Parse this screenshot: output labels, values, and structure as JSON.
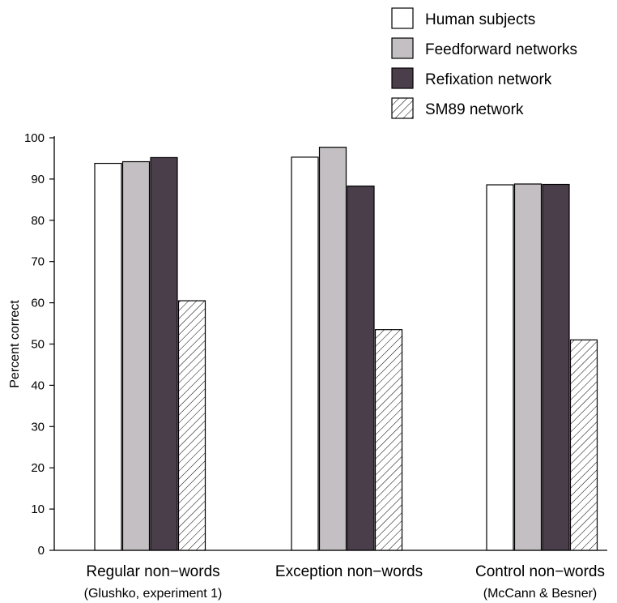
{
  "chart_data": {
    "type": "bar",
    "title": "",
    "xlabel": "",
    "ylabel": "Percent correct",
    "ylim": [
      0,
      100
    ],
    "yticks": [
      0,
      10,
      20,
      30,
      40,
      50,
      60,
      70,
      80,
      90,
      100
    ],
    "grid": false,
    "legend_position": "top-right",
    "categories": [
      "Regular non−words",
      "Exception non−words",
      "Control non−words"
    ],
    "category_sublabels": [
      "(Glushko, experiment 1)",
      "",
      "(McCann & Besner)"
    ],
    "series": [
      {
        "name": "Human subjects",
        "values": [
          93.8,
          95.3,
          88.6
        ],
        "fill": "#ffffff",
        "pattern": "none"
      },
      {
        "name": "Feedforward networks",
        "values": [
          94.2,
          97.7,
          88.8
        ],
        "fill": "#c3bfc2",
        "pattern": "none"
      },
      {
        "name": "Refixation network",
        "values": [
          95.2,
          88.3,
          88.7
        ],
        "fill": "#4a3e4b",
        "pattern": "none"
      },
      {
        "name": "SM89 network",
        "values": [
          60.5,
          53.5,
          51.0
        ],
        "fill": "#ffffff",
        "pattern": "diagonal-hatch"
      }
    ]
  }
}
